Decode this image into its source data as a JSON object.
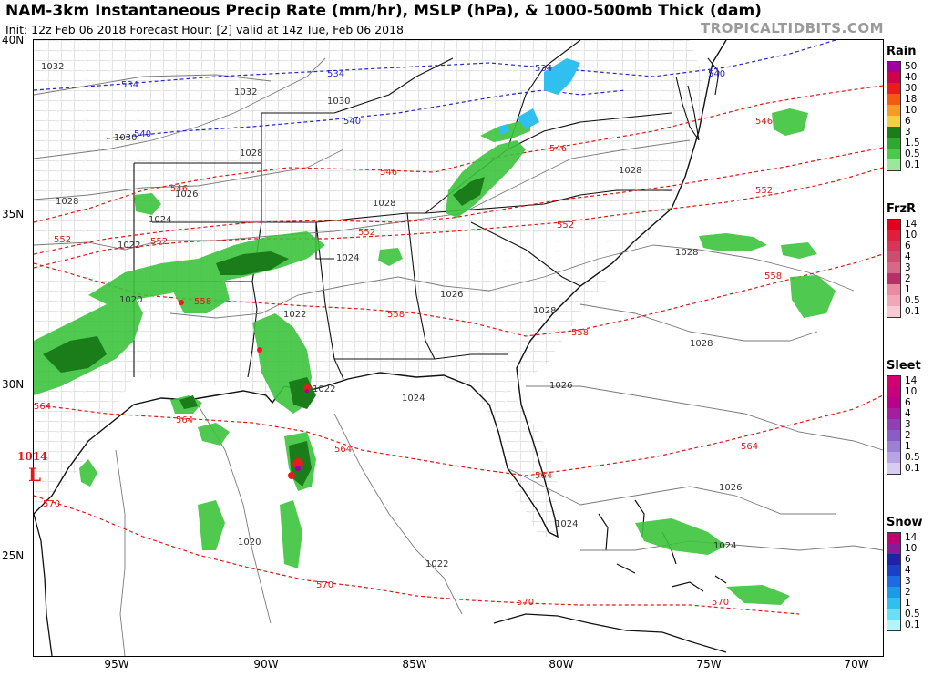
{
  "header": {
    "title": "NAM-3km Instantaneous Precip Rate (mm/hr), MSLP (hPa), & 1000-500mb Thick (dam)",
    "subtitle": "Init: 12z Feb 06 2018   Forecast Hour: [2]   valid at 14z Tue, Feb 06 2018",
    "brand": "TROPICALTIDBITS.COM"
  },
  "axes": {
    "lat_labels": [
      "40N",
      "35N",
      "30N",
      "25N"
    ],
    "lon_labels": [
      "95W",
      "90W",
      "85W",
      "80W",
      "75W",
      "70W"
    ]
  },
  "legends": [
    {
      "title": "Rain",
      "items": [
        {
          "label": "50",
          "color": "#a000a0"
        },
        {
          "label": "40",
          "color": "#d0004a"
        },
        {
          "label": "30",
          "color": "#e81c1c"
        },
        {
          "label": "18",
          "color": "#f55a12"
        },
        {
          "label": "10",
          "color": "#f79a28"
        },
        {
          "label": "6",
          "color": "#f5d040"
        },
        {
          "label": "3",
          "color": "#1a7d1a"
        },
        {
          "label": "1.5",
          "color": "#2ea82e"
        },
        {
          "label": "0.5",
          "color": "#4cc84c"
        },
        {
          "label": "0.1",
          "color": "#9ae89a"
        }
      ]
    },
    {
      "title": "FrzR",
      "items": [
        {
          "label": "14",
          "color": "#e2001a"
        },
        {
          "label": "10",
          "color": "#e01e3c"
        },
        {
          "label": "6",
          "color": "#d83658"
        },
        {
          "label": "4",
          "color": "#d04c6e"
        },
        {
          "label": "3",
          "color": "#d86888"
        },
        {
          "label": "2",
          "color": "#b8306a"
        },
        {
          "label": "1",
          "color": "#e88aa0"
        },
        {
          "label": "0.5",
          "color": "#f0a8b8"
        },
        {
          "label": "0.1",
          "color": "#f8cad4"
        }
      ]
    },
    {
      "title": "Sleet",
      "items": [
        {
          "label": "14",
          "color": "#d40070"
        },
        {
          "label": "10",
          "color": "#c8007a"
        },
        {
          "label": "6",
          "color": "#b8008a"
        },
        {
          "label": "4",
          "color": "#a41ea0"
        },
        {
          "label": "3",
          "color": "#9040b4"
        },
        {
          "label": "2",
          "color": "#8a5cc4"
        },
        {
          "label": "1",
          "color": "#9c80d4"
        },
        {
          "label": "0.5",
          "color": "#b8a4e2"
        },
        {
          "label": "0.1",
          "color": "#d8ccf0"
        }
      ]
    },
    {
      "title": "Snow",
      "items": [
        {
          "label": "14",
          "color": "#c0006e"
        },
        {
          "label": "10",
          "color": "#8a1a9a"
        },
        {
          "label": "6",
          "color": "#2020a8"
        },
        {
          "label": "4",
          "color": "#1a40c8"
        },
        {
          "label": "3",
          "color": "#1e6ae0"
        },
        {
          "label": "2",
          "color": "#1a9ae8"
        },
        {
          "label": "1",
          "color": "#30c0f0"
        },
        {
          "label": "0.5",
          "color": "#6ae0f8"
        },
        {
          "label": "0.1",
          "color": "#b4f4fc"
        }
      ]
    }
  ],
  "isobar_labels": [
    "1032",
    "1032",
    "1030",
    "1030",
    "1028",
    "1028",
    "1028",
    "1028",
    "1026",
    "1024",
    "1024",
    "1022",
    "1022",
    "1020",
    "1022",
    "1024",
    "1026",
    "1028",
    "1028",
    "1028",
    "1026",
    "1026",
    "1024",
    "1024",
    "1022",
    "1020",
    "1014"
  ],
  "thickness_labels_blue": [
    "534",
    "534",
    "534",
    "540",
    "540",
    "540"
  ],
  "thickness_labels_red": [
    "546",
    "546",
    "546",
    "546",
    "552",
    "552",
    "552",
    "552",
    "552",
    "558",
    "558",
    "558",
    "558",
    "564",
    "564",
    "564",
    "564",
    "564",
    "570",
    "570",
    "570",
    "570"
  ],
  "low_symbol": "L",
  "colors": {
    "thickness_cold": "#2828c8",
    "thickness_warm": "#e01818",
    "isobar": "#707070",
    "border": "#111111",
    "county": "#9a9a9a"
  }
}
